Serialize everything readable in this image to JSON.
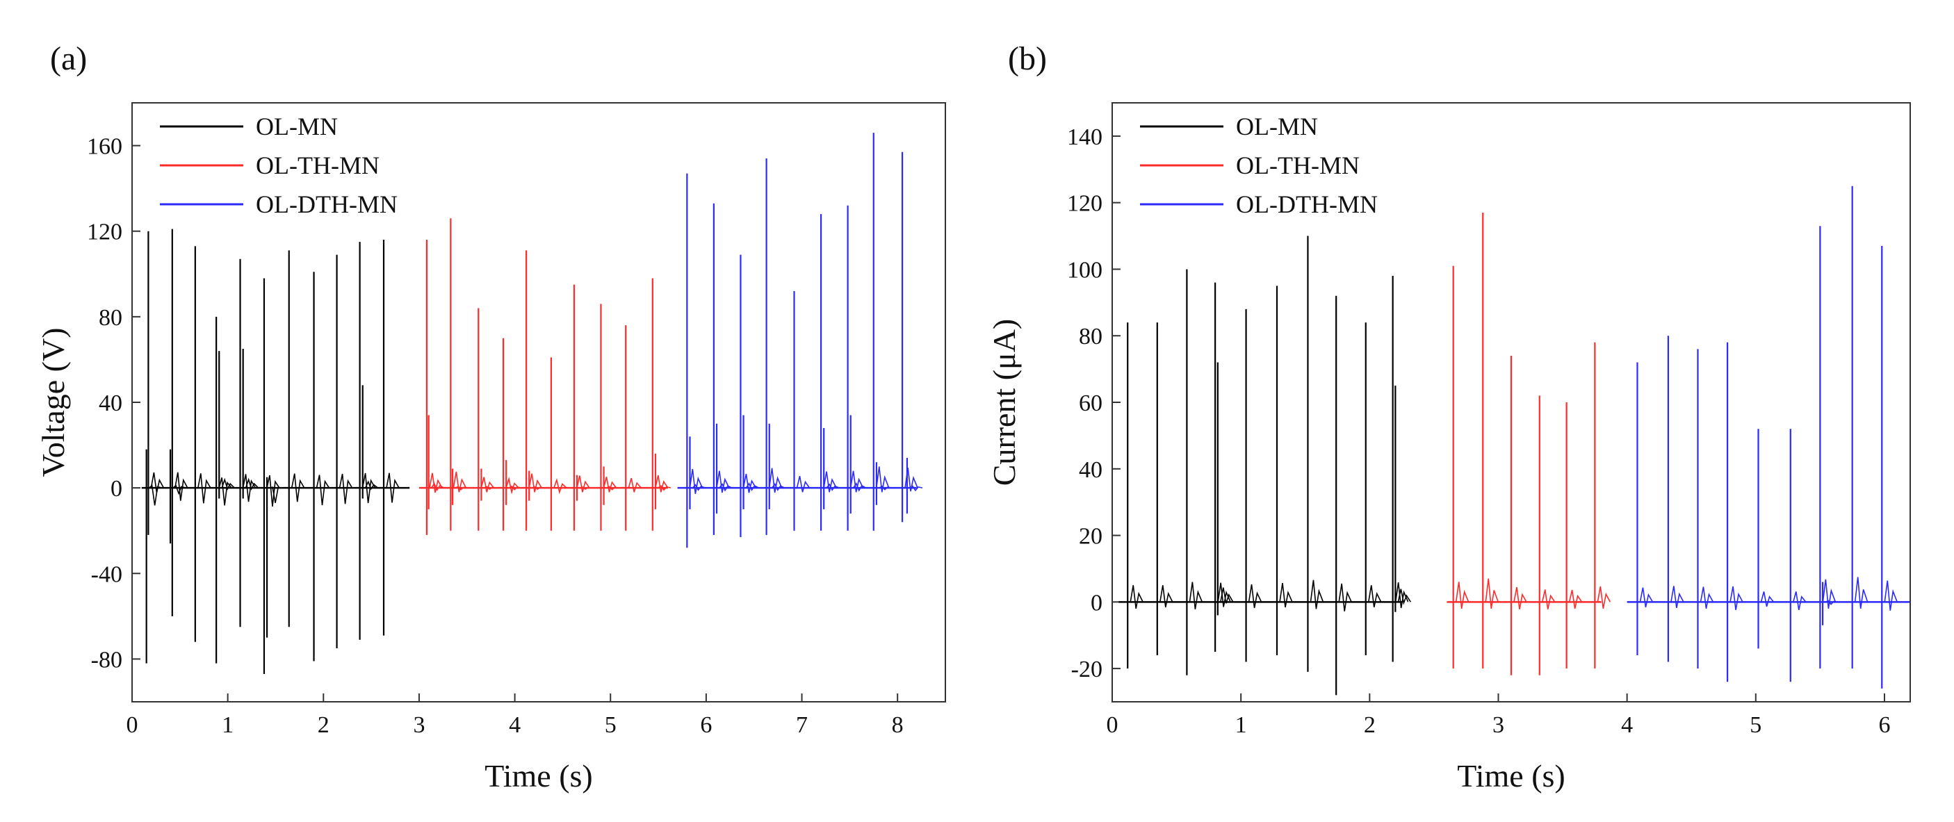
{
  "chart_data": [
    {
      "panel_label": "(a)",
      "type": "line",
      "xlabel": "Time (s)",
      "ylabel": "Voltage (V)",
      "xlim": [
        0,
        8.5
      ],
      "ylim": [
        -100,
        180
      ],
      "xticks": [
        "0",
        "1",
        "2",
        "3",
        "4",
        "5",
        "6",
        "7",
        "8"
      ],
      "yticks": [
        "-80",
        "-40",
        "0",
        "40",
        "80",
        "120",
        "160"
      ],
      "legend_position": "top-left",
      "series": [
        {
          "name": "OL-MN",
          "color": "#000000",
          "x_range": [
            0.1,
            2.9
          ],
          "peaks": [
            {
              "t": 0.15,
              "max": 18,
              "min": -82
            },
            {
              "t": 0.17,
              "max": 120,
              "min": -22
            },
            {
              "t": 0.4,
              "max": 18,
              "min": -26
            },
            {
              "t": 0.42,
              "max": 121,
              "min": -60
            },
            {
              "t": 0.66,
              "max": 113,
              "min": -72
            },
            {
              "t": 0.88,
              "max": 80,
              "min": -82
            },
            {
              "t": 0.91,
              "max": 64,
              "min": -5
            },
            {
              "t": 1.13,
              "max": 107,
              "min": -65
            },
            {
              "t": 1.16,
              "max": 65,
              "min": -5
            },
            {
              "t": 1.38,
              "max": 98,
              "min": -87
            },
            {
              "t": 1.41,
              "max": 5,
              "min": -70
            },
            {
              "t": 1.64,
              "max": 111,
              "min": -65
            },
            {
              "t": 1.9,
              "max": 101,
              "min": -81
            },
            {
              "t": 2.14,
              "max": 109,
              "min": -75
            },
            {
              "t": 2.38,
              "max": 115,
              "min": -71
            },
            {
              "t": 2.41,
              "max": 48,
              "min": -5
            },
            {
              "t": 2.63,
              "max": 116,
              "min": -69
            }
          ]
        },
        {
          "name": "OL-TH-MN",
          "color": "#ff2a2a",
          "x_range": [
            3.0,
            5.6
          ],
          "peaks": [
            {
              "t": 3.08,
              "max": 116,
              "min": -22
            },
            {
              "t": 3.1,
              "max": 34,
              "min": -10
            },
            {
              "t": 3.33,
              "max": 126,
              "min": -20
            },
            {
              "t": 3.35,
              "max": 9,
              "min": -8
            },
            {
              "t": 3.62,
              "max": 84,
              "min": -20
            },
            {
              "t": 3.65,
              "max": 9,
              "min": -6
            },
            {
              "t": 3.88,
              "max": 70,
              "min": -20
            },
            {
              "t": 3.91,
              "max": 13,
              "min": -8
            },
            {
              "t": 4.12,
              "max": 111,
              "min": -20
            },
            {
              "t": 4.15,
              "max": 8,
              "min": -6
            },
            {
              "t": 4.38,
              "max": 61,
              "min": -20
            },
            {
              "t": 4.62,
              "max": 95,
              "min": -20
            },
            {
              "t": 4.65,
              "max": 6,
              "min": -6
            },
            {
              "t": 4.9,
              "max": 86,
              "min": -20
            },
            {
              "t": 4.93,
              "max": 10,
              "min": -8
            },
            {
              "t": 5.16,
              "max": 76,
              "min": -20
            },
            {
              "t": 5.44,
              "max": 98,
              "min": -20
            },
            {
              "t": 5.47,
              "max": 16,
              "min": -10
            }
          ]
        },
        {
          "name": "OL-DTH-MN",
          "color": "#2a2aff",
          "x_range": [
            5.7,
            8.2
          ],
          "peaks": [
            {
              "t": 5.8,
              "max": 147,
              "min": -28
            },
            {
              "t": 5.83,
              "max": 24,
              "min": -10
            },
            {
              "t": 6.08,
              "max": 133,
              "min": -22
            },
            {
              "t": 6.11,
              "max": 30,
              "min": -12
            },
            {
              "t": 6.36,
              "max": 109,
              "min": -23
            },
            {
              "t": 6.39,
              "max": 34,
              "min": -10
            },
            {
              "t": 6.63,
              "max": 154,
              "min": -22
            },
            {
              "t": 6.66,
              "max": 30,
              "min": -10
            },
            {
              "t": 6.92,
              "max": 92,
              "min": -20
            },
            {
              "t": 7.2,
              "max": 128,
              "min": -20
            },
            {
              "t": 7.23,
              "max": 28,
              "min": -10
            },
            {
              "t": 7.48,
              "max": 132,
              "min": -20
            },
            {
              "t": 7.51,
              "max": 34,
              "min": -12
            },
            {
              "t": 7.75,
              "max": 166,
              "min": -20
            },
            {
              "t": 7.78,
              "max": 12,
              "min": -8
            },
            {
              "t": 8.05,
              "max": 157,
              "min": -16
            },
            {
              "t": 8.1,
              "max": 14,
              "min": -12
            }
          ]
        }
      ]
    },
    {
      "panel_label": "(b)",
      "type": "line",
      "xlabel": "Time (s)",
      "ylabel": "Current (μA)",
      "xlim": [
        0,
        6.2
      ],
      "ylim": [
        -30,
        150
      ],
      "xticks": [
        "0",
        "1",
        "2",
        "3",
        "4",
        "5",
        "6"
      ],
      "yticks": [
        "-20",
        "0",
        "20",
        "40",
        "60",
        "80",
        "100",
        "120",
        "140"
      ],
      "legend_position": "top-left",
      "series": [
        {
          "name": "OL-MN",
          "color": "#000000",
          "x_range": [
            0.05,
            2.25
          ],
          "peaks": [
            {
              "t": 0.12,
              "max": 84,
              "min": -20
            },
            {
              "t": 0.35,
              "max": 84,
              "min": -16
            },
            {
              "t": 0.58,
              "max": 100,
              "min": -22
            },
            {
              "t": 0.8,
              "max": 96,
              "min": -15
            },
            {
              "t": 0.82,
              "max": 72,
              "min": -4
            },
            {
              "t": 1.04,
              "max": 88,
              "min": -18
            },
            {
              "t": 1.28,
              "max": 95,
              "min": -16
            },
            {
              "t": 1.52,
              "max": 110,
              "min": -21
            },
            {
              "t": 1.74,
              "max": 92,
              "min": -28
            },
            {
              "t": 1.97,
              "max": 84,
              "min": -16
            },
            {
              "t": 2.18,
              "max": 98,
              "min": -18
            },
            {
              "t": 2.2,
              "max": 65,
              "min": -3
            }
          ]
        },
        {
          "name": "OL-TH-MN",
          "color": "#ff2a2a",
          "x_range": [
            2.6,
            3.8
          ],
          "peaks": [
            {
              "t": 2.65,
              "max": 101,
              "min": -20
            },
            {
              "t": 2.88,
              "max": 117,
              "min": -20
            },
            {
              "t": 3.1,
              "max": 74,
              "min": -22
            },
            {
              "t": 3.32,
              "max": 62,
              "min": -22
            },
            {
              "t": 3.53,
              "max": 60,
              "min": -20
            },
            {
              "t": 3.75,
              "max": 78,
              "min": -20
            }
          ]
        },
        {
          "name": "OL-DTH-MN",
          "color": "#2a2aff",
          "x_range": [
            4.0,
            6.2
          ],
          "peaks": [
            {
              "t": 4.08,
              "max": 72,
              "min": -16
            },
            {
              "t": 4.32,
              "max": 80,
              "min": -18
            },
            {
              "t": 4.55,
              "max": 76,
              "min": -20
            },
            {
              "t": 4.78,
              "max": 78,
              "min": -24
            },
            {
              "t": 5.02,
              "max": 52,
              "min": -14
            },
            {
              "t": 5.27,
              "max": 52,
              "min": -24
            },
            {
              "t": 5.5,
              "max": 113,
              "min": -20
            },
            {
              "t": 5.52,
              "max": 6,
              "min": -7
            },
            {
              "t": 5.75,
              "max": 125,
              "min": -20
            },
            {
              "t": 5.98,
              "max": 107,
              "min": -26
            }
          ]
        }
      ]
    }
  ]
}
